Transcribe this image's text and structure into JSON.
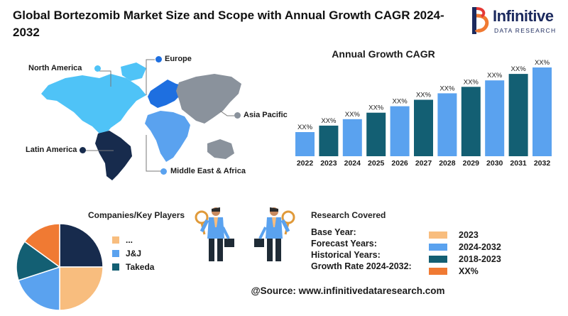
{
  "header": {
    "title": "Global Bortezomib Market Size and Scope with Annual Growth CAGR 2024-2032"
  },
  "logo": {
    "name": "Infinitive",
    "tagline": "DATA RESEARCH"
  },
  "map": {
    "regions": [
      {
        "label": "North America",
        "color": "#4fc3f7"
      },
      {
        "label": "Europe",
        "color": "#1e6fe0"
      },
      {
        "label": "Asia Pacific",
        "color": "#8a929c"
      },
      {
        "label": "Latin America",
        "color": "#172b4d"
      },
      {
        "label": "Middle East & Africa",
        "color": "#5aa2ef"
      }
    ]
  },
  "chart_data": {
    "type": "bar",
    "title": "Annual Growth CAGR",
    "categories": [
      "2022",
      "2023",
      "2024",
      "2025",
      "2026",
      "2027",
      "2028",
      "2029",
      "2030",
      "2031",
      "2032"
    ],
    "values": [
      1,
      2,
      3,
      4,
      5,
      6,
      7,
      8,
      9,
      10,
      11
    ],
    "data_labels": [
      "XX%",
      "XX%",
      "XX%",
      "XX%",
      "XX%",
      "XX%",
      "XX%",
      "XX%",
      "XX%",
      "XX%",
      "XX%"
    ],
    "colors": [
      "#5aa2ef",
      "#135f73",
      "#5aa2ef",
      "#135f73",
      "#5aa2ef",
      "#135f73",
      "#5aa2ef",
      "#135f73",
      "#5aa2ef",
      "#135f73",
      "#5aa2ef"
    ],
    "grid": false,
    "ylim": [
      0,
      11
    ]
  },
  "companies": {
    "title": "Companies/Key Players",
    "legend": [
      {
        "label": "...",
        "color": "#f8bd7e"
      },
      {
        "label": "J&J",
        "color": "#5aa2ef"
      },
      {
        "label": "Takeda",
        "color": "#135f73"
      }
    ],
    "pie": [
      {
        "value": 25,
        "color": "#172b4d"
      },
      {
        "value": 25,
        "color": "#f8bd7e"
      },
      {
        "value": 20,
        "color": "#5aa2ef"
      },
      {
        "value": 15,
        "color": "#135f73"
      },
      {
        "value": 15,
        "color": "#f07a33"
      }
    ]
  },
  "research": {
    "title": "Research Covered",
    "rows": [
      {
        "label": "Base Year:",
        "value": "2023",
        "color": "#f8bd7e"
      },
      {
        "label": "Forecast Years:",
        "value": "2024-2032",
        "color": "#5aa2ef"
      },
      {
        "label": "Historical Years:",
        "value": "2018-2023",
        "color": "#135f73"
      },
      {
        "label": "Growth Rate 2024-2032:",
        "value": "XX%",
        "color": "#f07a33"
      }
    ]
  },
  "footer": {
    "source": "@Source: www.infinitivedataresearch.com"
  }
}
